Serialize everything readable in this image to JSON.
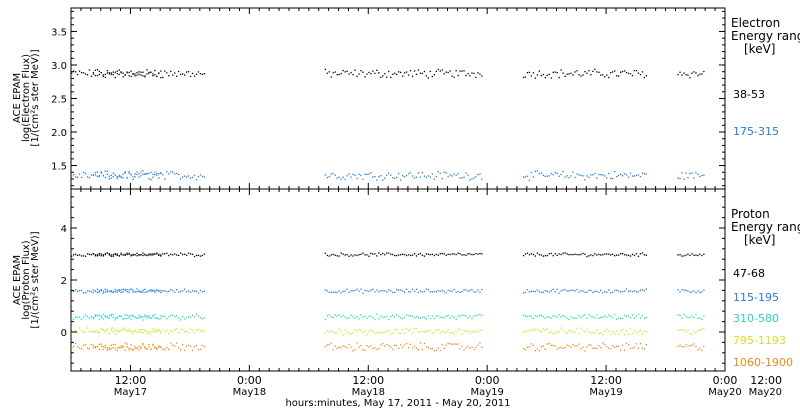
{
  "chart_data": [
    {
      "type": "scatter",
      "panel": "electron",
      "ylabel_lines": [
        "ACE EPAM",
        "log(Electron Flux)",
        "[1/(cm²s ster MeV)]"
      ],
      "yticks": [
        "1.5",
        "2.0",
        "2.5",
        "3.0",
        "3.5"
      ],
      "ylim": [
        1.15,
        3.85
      ],
      "legend_title": [
        "Electron",
        "Energy range",
        "[keV]"
      ],
      "series": [
        {
          "name": "38-53",
          "color": "#000000",
          "mean": 2.88,
          "spread": 0.05,
          "segments": [
            [
              -6,
              3.1
            ],
            [
              -3.8,
              7.6
            ],
            [
              19.6,
              35.6
            ],
            [
              39.6,
              52.2
            ],
            [
              55.2,
              58
            ]
          ]
        },
        {
          "name": "175-315",
          "color": "#2a7bd0",
          "mean": 1.36,
          "spread": 0.05,
          "segments": [
            [
              -6,
              3.1
            ],
            [
              -3.8,
              7.6
            ],
            [
              19.6,
              35.6
            ],
            [
              39.6,
              52.2
            ],
            [
              55.2,
              58
            ]
          ]
        }
      ]
    },
    {
      "type": "scatter",
      "panel": "proton",
      "ylabel_lines": [
        "ACE EPAM",
        "log(Proton Flux)",
        "[1/(cm²s ster MeV)]"
      ],
      "yticks": [
        "0",
        "2",
        "4"
      ],
      "ylim": [
        -1.5,
        5.5
      ],
      "legend_title": [
        "Proton",
        "Energy range",
        "[keV]"
      ],
      "series": [
        {
          "name": "47-68",
          "color": "#000000",
          "mean": 3.0,
          "spread": 0.05,
          "segments": [
            [
              -6,
              3.1
            ],
            [
              -3.8,
              7.6
            ],
            [
              19.6,
              35.6
            ],
            [
              39.6,
              52.2
            ],
            [
              55.2,
              58
            ]
          ]
        },
        {
          "name": "115-195",
          "color": "#2a7bd0",
          "mean": 1.6,
          "spread": 0.06,
          "segments": [
            [
              -6,
              3.1
            ],
            [
              -3.8,
              7.6
            ],
            [
              19.6,
              35.6
            ],
            [
              39.6,
              52.2
            ],
            [
              55.2,
              58
            ]
          ]
        },
        {
          "name": "310-580",
          "color": "#2ad0c6",
          "mean": 0.6,
          "spread": 0.08,
          "segments": [
            [
              -6,
              3.1
            ],
            [
              -3.8,
              7.6
            ],
            [
              19.6,
              35.6
            ],
            [
              39.6,
              52.2
            ],
            [
              55.2,
              58
            ]
          ]
        },
        {
          "name": "795-1193",
          "color": "#d4e02a",
          "mean": 0.05,
          "spread": 0.1,
          "segments": [
            [
              -6,
              3.1
            ],
            [
              -3.8,
              7.6
            ],
            [
              19.6,
              35.6
            ],
            [
              39.6,
              52.2
            ],
            [
              55.2,
              58
            ]
          ]
        },
        {
          "name": "1060-1900",
          "color": "#e88a1a",
          "mean": -0.55,
          "spread": 0.12,
          "segments": [
            [
              -6,
              3.1
            ],
            [
              -3.8,
              7.6
            ],
            [
              19.6,
              35.6
            ],
            [
              39.6,
              52.2
            ],
            [
              55.2,
              58
            ]
          ]
        }
      ]
    }
  ],
  "x_axis": {
    "range_hours": [
      -6,
      60
    ],
    "ticks": [
      {
        "hours": 0,
        "time": "12:00",
        "date": "May17"
      },
      {
        "hours": 12,
        "time": "0:00",
        "date": "May18"
      },
      {
        "hours": 24,
        "time": "12:00",
        "date": "May18"
      },
      {
        "hours": 36,
        "time": "0:00",
        "date": "May19"
      },
      {
        "hours": 48,
        "time": "12:00",
        "date": "May19"
      },
      {
        "hours": 60,
        "time": "0:00",
        "date": "May20"
      },
      {
        "hours": 72,
        "time": "12:00",
        "date": "May20"
      }
    ],
    "label": "hours:minutes, May 17, 2011 - May 20, 2011"
  }
}
